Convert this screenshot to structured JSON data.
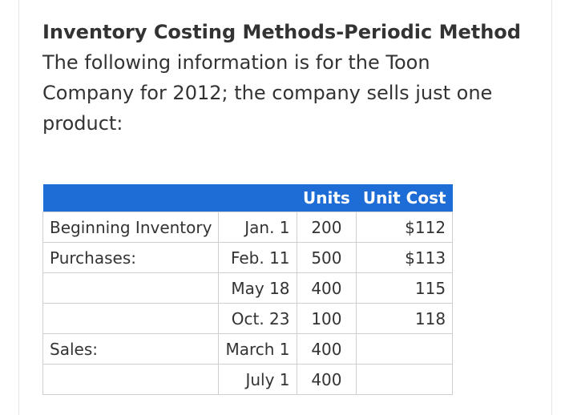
{
  "heading": {
    "title": "Inventory Costing Methods-Periodic Method",
    "lines": [
      "The following information is for the Toon",
      "Company for 2012; the company sells just one",
      "product:"
    ]
  },
  "table": {
    "headers": [
      "",
      "",
      "Units",
      "Unit Cost"
    ],
    "rows": [
      {
        "label": "Beginning Inventory",
        "date": "Jan. 1",
        "units": "200",
        "cost": "$112"
      },
      {
        "label": "Purchases:",
        "date": "Feb. 11",
        "units": "500",
        "cost": "$113"
      },
      {
        "label": "",
        "date": "May 18",
        "units": "400",
        "cost": "115"
      },
      {
        "label": "",
        "date": "Oct. 23",
        "units": "100",
        "cost": "118"
      },
      {
        "label": "Sales:",
        "date": "March 1",
        "units": "400",
        "cost": ""
      },
      {
        "label": "",
        "date": "July 1",
        "units": "400",
        "cost": ""
      }
    ]
  },
  "colors": {
    "header_bg": "#1e6cd6",
    "text": "#333333"
  }
}
